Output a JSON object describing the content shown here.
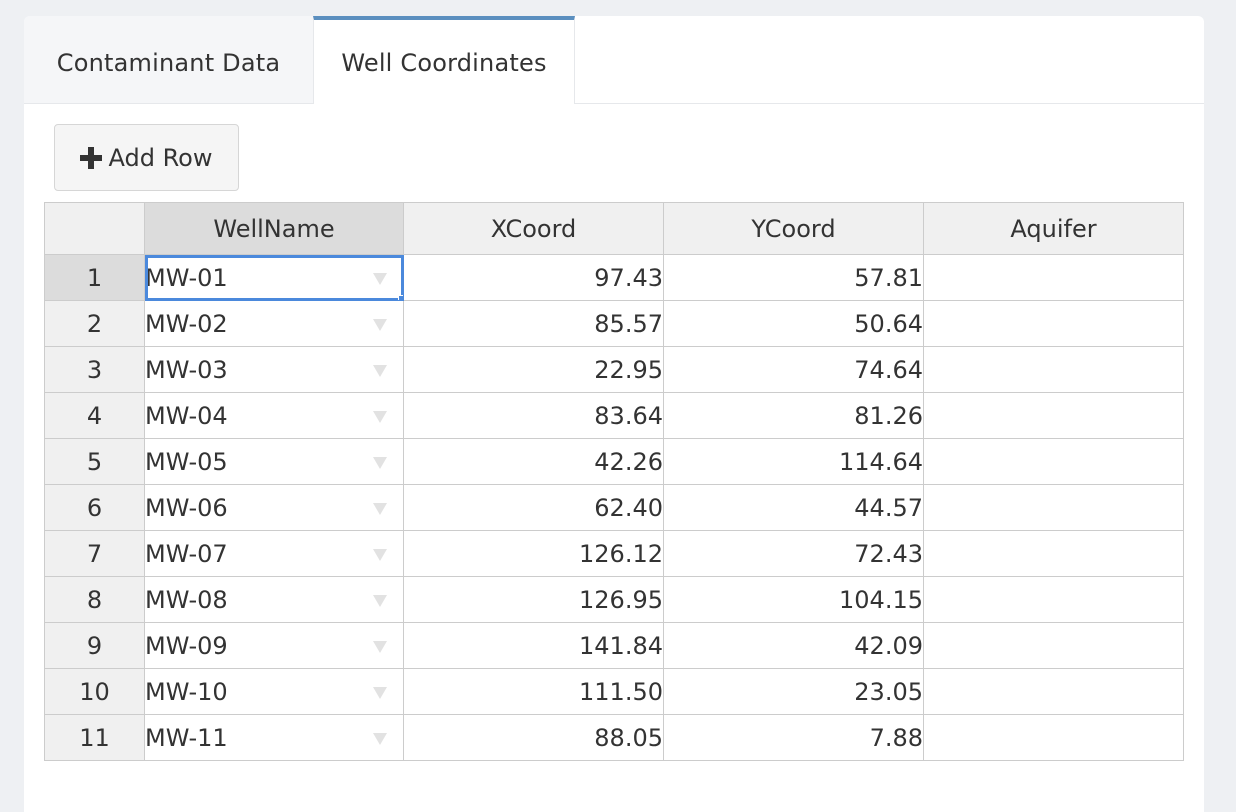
{
  "tabs": [
    {
      "label": "Contaminant Data",
      "active": false
    },
    {
      "label": "Well Coordinates",
      "active": true
    }
  ],
  "toolbar": {
    "add_row_label": "Add Row",
    "add_icon": "plus-icon"
  },
  "colors": {
    "active_tab_accent": "#5b8fbf",
    "selection": "#4b89dc"
  },
  "table": {
    "columns": [
      "WellName",
      "XCoord",
      "YCoord",
      "Aquifer"
    ],
    "selected_row": 1,
    "rows": [
      {
        "num": "1",
        "name": "MW-01",
        "x": "97.43",
        "y": "57.81",
        "aquifer": ""
      },
      {
        "num": "2",
        "name": "MW-02",
        "x": "85.57",
        "y": "50.64",
        "aquifer": ""
      },
      {
        "num": "3",
        "name": "MW-03",
        "x": "22.95",
        "y": "74.64",
        "aquifer": ""
      },
      {
        "num": "4",
        "name": "MW-04",
        "x": "83.64",
        "y": "81.26",
        "aquifer": ""
      },
      {
        "num": "5",
        "name": "MW-05",
        "x": "42.26",
        "y": "114.64",
        "aquifer": ""
      },
      {
        "num": "6",
        "name": "MW-06",
        "x": "62.40",
        "y": "44.57",
        "aquifer": ""
      },
      {
        "num": "7",
        "name": "MW-07",
        "x": "126.12",
        "y": "72.43",
        "aquifer": ""
      },
      {
        "num": "8",
        "name": "MW-08",
        "x": "126.95",
        "y": "104.15",
        "aquifer": ""
      },
      {
        "num": "9",
        "name": "MW-09",
        "x": "141.84",
        "y": "42.09",
        "aquifer": ""
      },
      {
        "num": "10",
        "name": "MW-10",
        "x": "111.50",
        "y": "23.05",
        "aquifer": ""
      },
      {
        "num": "11",
        "name": "MW-11",
        "x": "88.05",
        "y": "7.88",
        "aquifer": ""
      }
    ]
  }
}
